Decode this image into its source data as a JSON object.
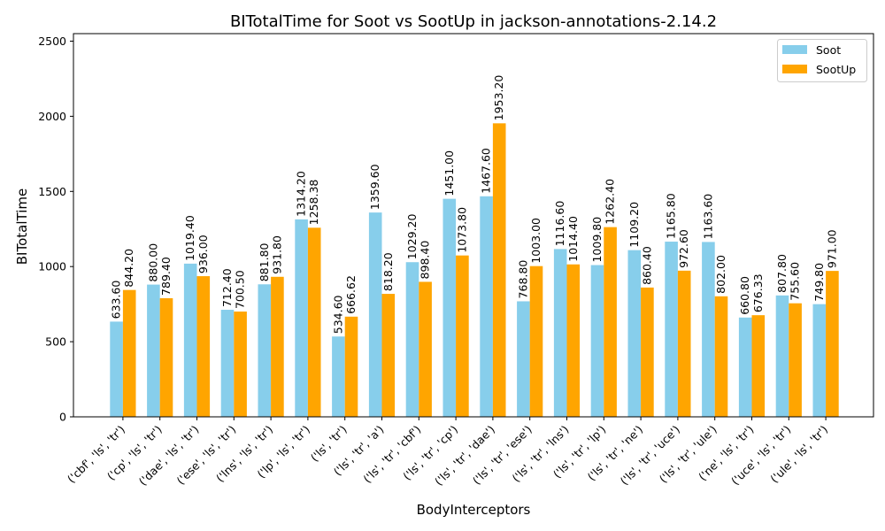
{
  "chart_data": {
    "type": "bar",
    "title": "BITotalTime for Soot vs SootUp in jackson-annotations-2.14.2",
    "xlabel": "BodyInterceptors",
    "ylabel": "BITotalTime",
    "ylim": [
      0,
      2550
    ],
    "yticks": [
      "0",
      "500",
      "1000",
      "1500",
      "2000",
      "2500"
    ],
    "legend_position": "top-right",
    "categories": [
      "('cbf', 'ls', 'tr')",
      "('cp', 'ls', 'tr')",
      "('dae', 'ls', 'tr')",
      "('ese', 'ls', 'tr')",
      "('lns', 'ls', 'tr')",
      "('lp', 'ls', 'tr')",
      "('ls', 'tr')",
      "('ls', 'tr', 'a')",
      "('ls', 'tr', 'cbf')",
      "('ls', 'tr', 'cp')",
      "('ls', 'tr', 'dae')",
      "('ls', 'tr', 'ese')",
      "('ls', 'tr', 'lns')",
      "('ls', 'tr', 'lp')",
      "('ls', 'tr', 'ne')",
      "('ls', 'tr', 'uce')",
      "('ls', 'tr', 'ule')",
      "('ne', 'ls', 'tr')",
      "('uce', 'ls', 'tr')",
      "('ule', 'ls', 'tr')"
    ],
    "series": [
      {
        "name": "Soot",
        "color": "#87ceeb",
        "values": [
          633.6,
          880.0,
          1019.4,
          712.4,
          881.8,
          1314.2,
          534.6,
          1359.6,
          1029.2,
          1451.0,
          1467.6,
          768.8,
          1116.6,
          1009.8,
          1109.2,
          1165.8,
          1163.6,
          660.8,
          807.8,
          749.8
        ],
        "labels": [
          "633.60",
          "880.00",
          "1019.40",
          "712.40",
          "881.80",
          "1314.20",
          "534.60",
          "1359.60",
          "1029.20",
          "1451.00",
          "1467.60",
          "768.80",
          "1116.60",
          "1009.80",
          "1109.20",
          "1165.80",
          "1163.60",
          "660.80",
          "807.80",
          "749.80"
        ]
      },
      {
        "name": "SootUp",
        "color": "#ffa500",
        "values": [
          844.2,
          789.4,
          936.0,
          700.5,
          931.8,
          1258.38,
          666.62,
          818.2,
          898.4,
          1073.8,
          1953.2,
          1003.0,
          1014.4,
          1262.4,
          860.4,
          972.6,
          802.0,
          676.33,
          755.6,
          971.0
        ],
        "labels": [
          "844.20",
          "789.40",
          "936.00",
          "700.50",
          "931.80",
          "1258.38",
          "666.62",
          "818.20",
          "898.40",
          "1073.80",
          "1953.20",
          "1003.00",
          "1014.40",
          "1262.40",
          "860.40",
          "972.60",
          "802.00",
          "676.33",
          "755.60",
          "971.00"
        ]
      }
    ]
  }
}
